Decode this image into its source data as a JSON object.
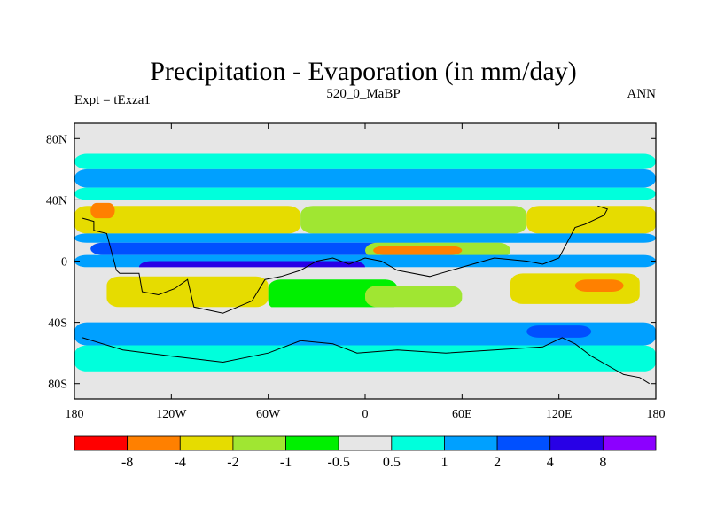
{
  "chart_data": {
    "type": "heatmap",
    "title": "Precipitation - Evaporation (in mm/day)",
    "subtitle_left": "Expt = tExza1",
    "subtitle_center": "520_0_MaBP",
    "subtitle_right": "ANN",
    "x_ticks": [
      {
        "value": -180,
        "label": "180"
      },
      {
        "value": -120,
        "label": "120W"
      },
      {
        "value": -60,
        "label": "60W"
      },
      {
        "value": 0,
        "label": "0"
      },
      {
        "value": 60,
        "label": "60E"
      },
      {
        "value": 120,
        "label": "120E"
      },
      {
        "value": 180,
        "label": "180"
      }
    ],
    "y_ticks": [
      {
        "value": 80,
        "label": "80N"
      },
      {
        "value": 40,
        "label": "40N"
      },
      {
        "value": 0,
        "label": "0"
      },
      {
        "value": -40,
        "label": "40S"
      },
      {
        "value": -80,
        "label": "80S"
      }
    ],
    "xlim": [
      -180,
      180
    ],
    "ylim": [
      -90,
      90
    ],
    "colorbar": {
      "labels": [
        "-8",
        "-4",
        "-2",
        "-1",
        "-0.5",
        "0.5",
        "1",
        "2",
        "4",
        "8"
      ],
      "colors": [
        "#ff0000",
        "#ff8000",
        "#e6dc00",
        "#a0e632",
        "#00f000",
        "#e6e6e6",
        "#00ffdc",
        "#00a0ff",
        "#0050ff",
        "#2800e6",
        "#8c00ff"
      ]
    },
    "bands": [
      {
        "lat": [
          70,
          90
        ],
        "lon": [
          -180,
          180
        ],
        "class": 5
      },
      {
        "lat": [
          60,
          70
        ],
        "lon": [
          -180,
          180
        ],
        "class": 6
      },
      {
        "lat": [
          48,
          60
        ],
        "lon": [
          -180,
          180
        ],
        "class": 7
      },
      {
        "lat": [
          40,
          48
        ],
        "lon": [
          -180,
          180
        ],
        "class": 6
      },
      {
        "lat": [
          36,
          40
        ],
        "lon": [
          -180,
          180
        ],
        "class": 5
      },
      {
        "lat": [
          18,
          36
        ],
        "lon": [
          -180,
          -40
        ],
        "class": 2
      },
      {
        "lat": [
          18,
          36
        ],
        "lon": [
          -40,
          100
        ],
        "class": 3
      },
      {
        "lat": [
          18,
          36
        ],
        "lon": [
          100,
          180
        ],
        "class": 2
      },
      {
        "lat": [
          28,
          38
        ],
        "lon": [
          -170,
          -155
        ],
        "class": 1
      },
      {
        "lat": [
          12,
          18
        ],
        "lon": [
          -180,
          180
        ],
        "class": 7
      },
      {
        "lat": [
          4,
          12
        ],
        "lon": [
          -170,
          40
        ],
        "class": 8
      },
      {
        "lat": [
          2,
          12
        ],
        "lon": [
          0,
          90
        ],
        "class": 3
      },
      {
        "lat": [
          4,
          10
        ],
        "lon": [
          5,
          60
        ],
        "class": 1
      },
      {
        "lat": [
          -4,
          4
        ],
        "lon": [
          -180,
          180
        ],
        "class": 7
      },
      {
        "lat": [
          -8,
          0
        ],
        "lon": [
          -140,
          0
        ],
        "class": 9
      },
      {
        "lat": [
          -10,
          -4
        ],
        "lon": [
          -180,
          180
        ],
        "class": 5
      },
      {
        "lat": [
          -30,
          -10
        ],
        "lon": [
          -160,
          -60
        ],
        "class": 2
      },
      {
        "lat": [
          -32,
          -12
        ],
        "lon": [
          -60,
          20
        ],
        "class": 4
      },
      {
        "lat": [
          -30,
          -16
        ],
        "lon": [
          0,
          60
        ],
        "class": 3
      },
      {
        "lat": [
          -28,
          -8
        ],
        "lon": [
          90,
          170
        ],
        "class": 2
      },
      {
        "lat": [
          -20,
          -12
        ],
        "lon": [
          130,
          160
        ],
        "class": 1
      },
      {
        "lat": [
          -40,
          -30
        ],
        "lon": [
          -180,
          180
        ],
        "class": 5
      },
      {
        "lat": [
          -55,
          -40
        ],
        "lon": [
          -180,
          180
        ],
        "class": 7
      },
      {
        "lat": [
          -50,
          -42
        ],
        "lon": [
          100,
          140
        ],
        "class": 8
      },
      {
        "lat": [
          -72,
          -55
        ],
        "lon": [
          -180,
          180
        ],
        "class": 6
      },
      {
        "lat": [
          -90,
          -72
        ],
        "lon": [
          -180,
          180
        ],
        "class": 5
      }
    ],
    "coastlines": [
      [
        [
          -175,
          28
        ],
        [
          -168,
          26
        ],
        [
          -168,
          20
        ],
        [
          -160,
          18
        ],
        [
          -158,
          10
        ],
        [
          -154,
          -6
        ],
        [
          -152,
          -8
        ],
        [
          -140,
          -8
        ],
        [
          -138,
          -20
        ],
        [
          -128,
          -22
        ],
        [
          -118,
          -18
        ],
        [
          -110,
          -12
        ],
        [
          -106,
          -30
        ],
        [
          -88,
          -34
        ],
        [
          -70,
          -26
        ],
        [
          -62,
          -12
        ],
        [
          -52,
          -10
        ],
        [
          -40,
          -6
        ],
        [
          -30,
          0
        ],
        [
          -20,
          2
        ],
        [
          -10,
          -2
        ],
        [
          0,
          2
        ],
        [
          10,
          0
        ],
        [
          20,
          -6
        ],
        [
          40,
          -10
        ],
        [
          60,
          -4
        ],
        [
          80,
          2
        ],
        [
          100,
          0
        ],
        [
          110,
          -2
        ],
        [
          120,
          2
        ],
        [
          130,
          22
        ],
        [
          136,
          24
        ],
        [
          140,
          26
        ],
        [
          148,
          30
        ],
        [
          150,
          34
        ],
        [
          144,
          36
        ]
      ],
      [
        [
          -175,
          -50
        ],
        [
          -150,
          -58
        ],
        [
          -120,
          -62
        ],
        [
          -88,
          -66
        ],
        [
          -60,
          -60
        ],
        [
          -40,
          -52
        ],
        [
          -20,
          -54
        ],
        [
          -5,
          -60
        ],
        [
          20,
          -58
        ],
        [
          50,
          -60
        ],
        [
          80,
          -58
        ],
        [
          110,
          -56
        ],
        [
          122,
          -50
        ],
        [
          130,
          -54
        ],
        [
          140,
          -62
        ],
        [
          150,
          -68
        ],
        [
          160,
          -74
        ],
        [
          170,
          -76
        ],
        [
          176,
          -80
        ]
      ]
    ]
  }
}
